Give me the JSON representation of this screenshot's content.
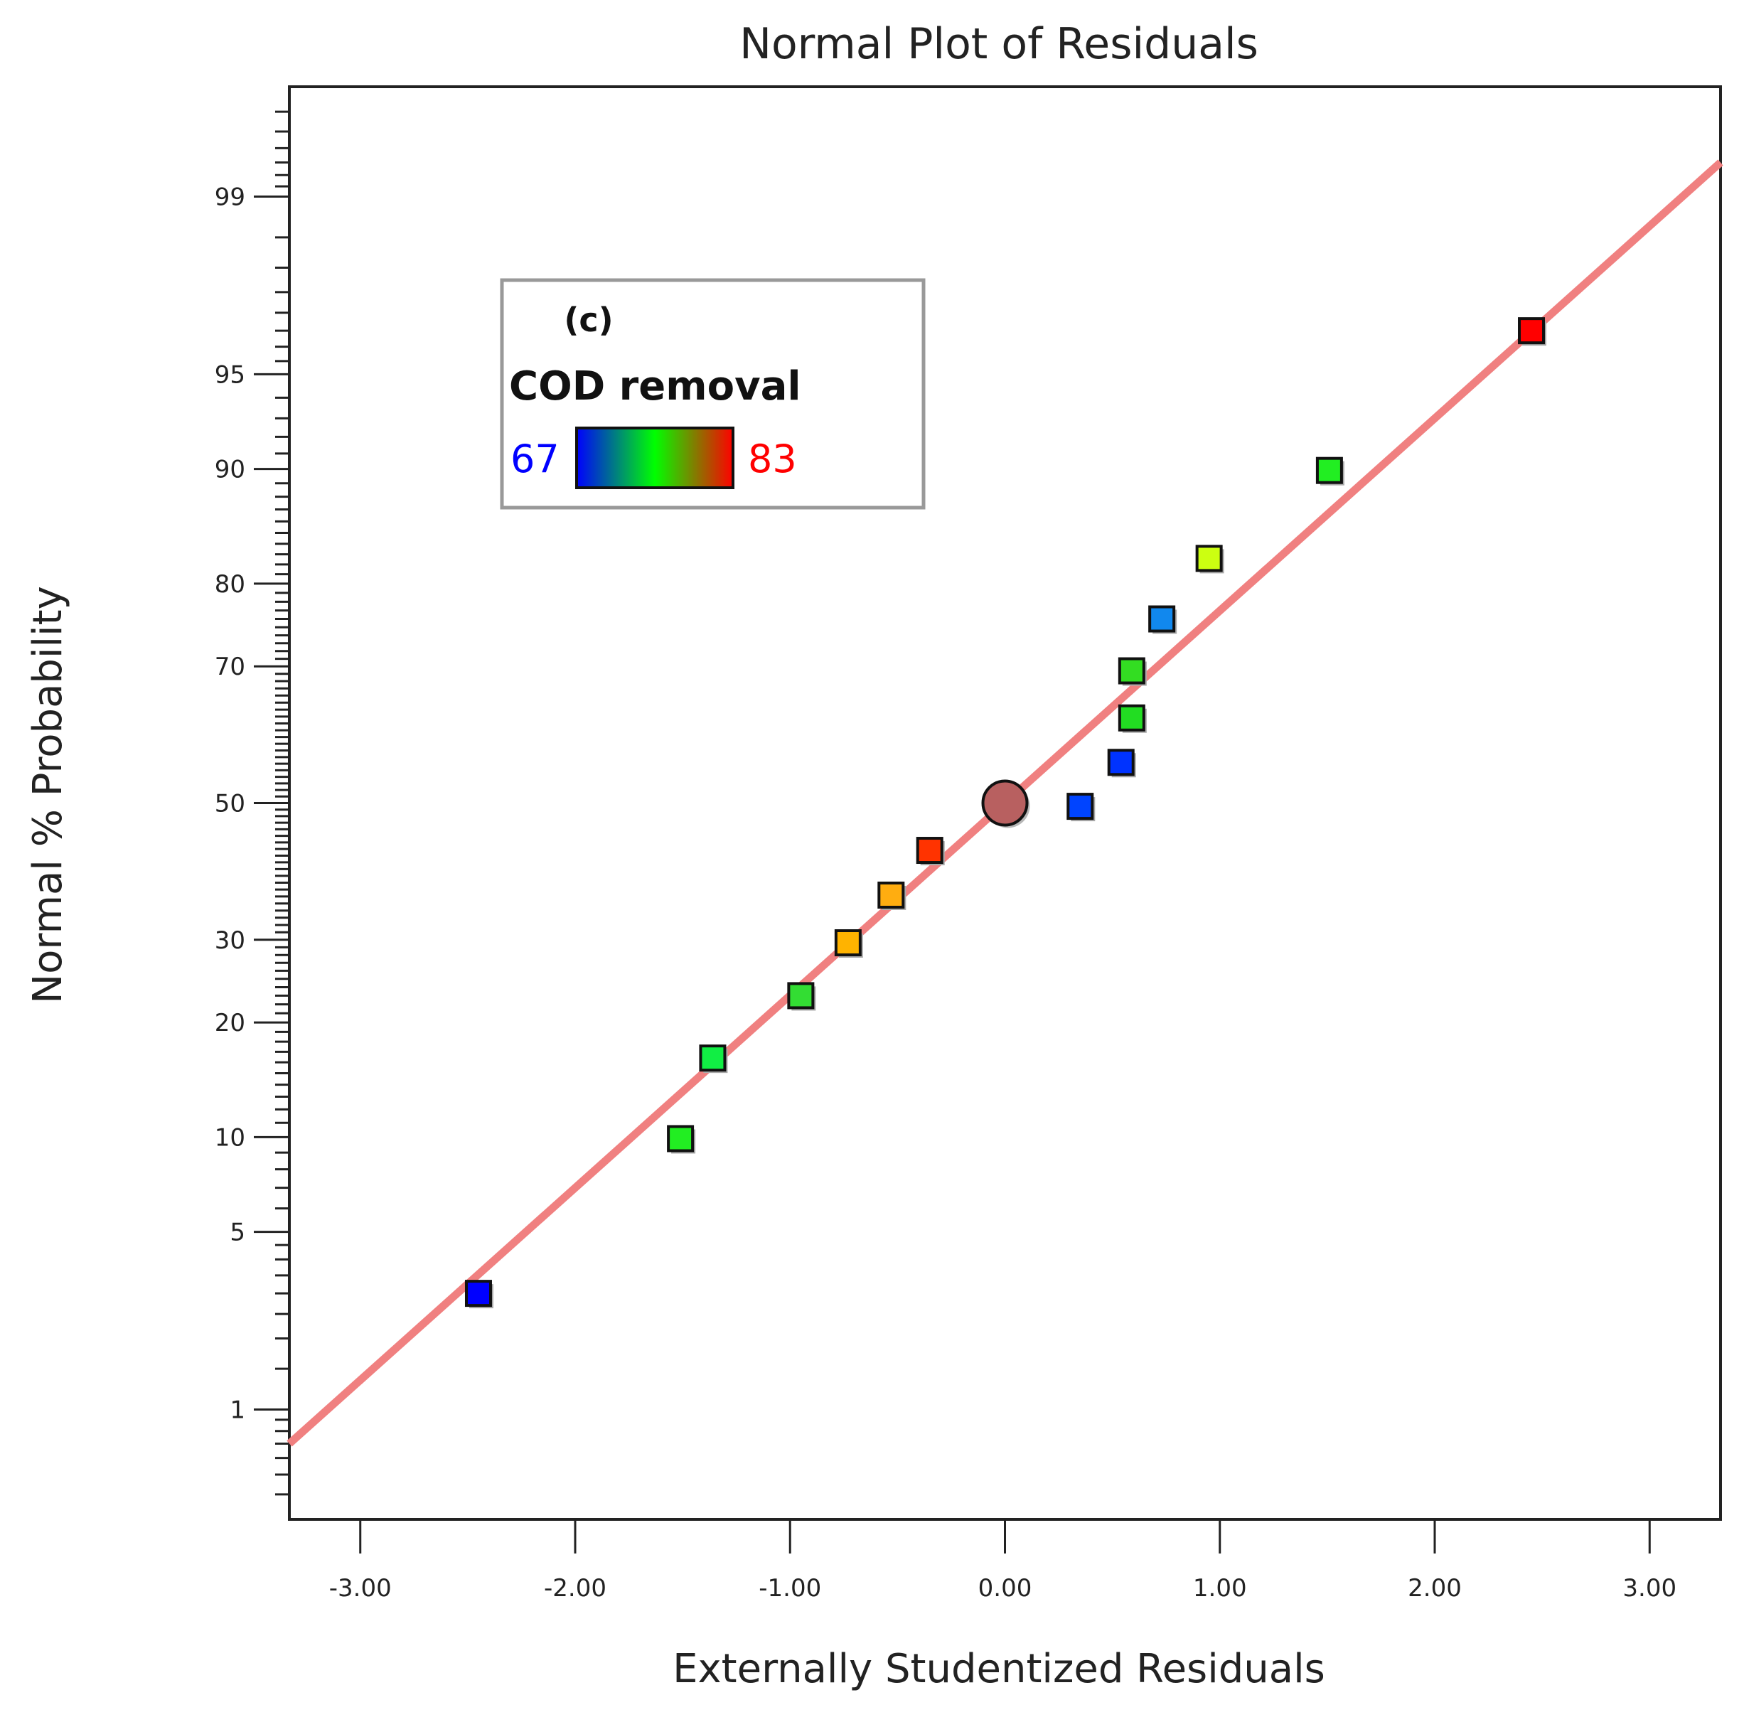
{
  "chart_data": {
    "type": "scatter",
    "title": "Normal Plot of Residuals",
    "xlabel": "Externally Studentized Residuals",
    "ylabel": "Normal % Probability",
    "xlim": [
      -3.33,
      3.33
    ],
    "ylim_percent": [
      0.3,
      99.7
    ],
    "x_ticks": [
      -3,
      -2,
      -1,
      0,
      1,
      2,
      3
    ],
    "x_tick_labels": [
      "-3.00",
      "-2.00",
      "-1.00",
      "0.00",
      "1.00",
      "2.00",
      "3.00"
    ],
    "y_ticks": [
      1,
      5,
      10,
      20,
      30,
      50,
      70,
      80,
      90,
      95,
      99
    ],
    "y_tick_labels": [
      "1",
      "5",
      "10",
      "20",
      "30",
      "50",
      "70",
      "80",
      "90",
      "95",
      "99"
    ],
    "reference_line": {
      "color": "#f08080",
      "points": [
        [
          -3.33,
          0.7
        ],
        [
          3.33,
          99.3
        ]
      ]
    },
    "points": [
      {
        "x": -2.45,
        "p": 3.0,
        "marker": "square",
        "color": "#0000ff"
      },
      {
        "x": -1.51,
        "p": 9.9,
        "marker": "square",
        "color": "#22ee22"
      },
      {
        "x": -1.36,
        "p": 16.4,
        "marker": "square",
        "color": "#11ee44"
      },
      {
        "x": -0.95,
        "p": 23.0,
        "marker": "square",
        "color": "#33dd33"
      },
      {
        "x": -0.73,
        "p": 29.6,
        "marker": "square",
        "color": "#ffb300"
      },
      {
        "x": -0.53,
        "p": 36.2,
        "marker": "square",
        "color": "#ffad10"
      },
      {
        "x": -0.35,
        "p": 42.8,
        "marker": "square",
        "color": "#ff3300"
      },
      {
        "x": 0.0,
        "p": 50.0,
        "marker": "circle",
        "color": "#b86060"
      },
      {
        "x": 0.35,
        "p": 49.5,
        "marker": "square",
        "color": "#0044ff"
      },
      {
        "x": 0.54,
        "p": 56.2,
        "marker": "square",
        "color": "#0033ff"
      },
      {
        "x": 0.59,
        "p": 62.8,
        "marker": "square",
        "color": "#22dd22"
      },
      {
        "x": 0.59,
        "p": 69.4,
        "marker": "square",
        "color": "#33dd22"
      },
      {
        "x": 0.73,
        "p": 76.0,
        "marker": "square",
        "color": "#1188ee"
      },
      {
        "x": 0.95,
        "p": 82.6,
        "marker": "square",
        "color": "#ccff11"
      },
      {
        "x": 1.51,
        "p": 89.9,
        "marker": "square",
        "color": "#22ee22"
      },
      {
        "x": 2.45,
        "p": 96.5,
        "marker": "square",
        "color": "#ff0000"
      }
    ],
    "legend": {
      "position": "top-left",
      "panel_label": "(c)",
      "title": "COD removal",
      "min_label": "67",
      "max_label": "83",
      "min_color": "#0000ff",
      "max_color": "#ff0000",
      "gradient_colors": [
        "#0000ff",
        "#00ff00",
        "#ff0000"
      ]
    }
  }
}
